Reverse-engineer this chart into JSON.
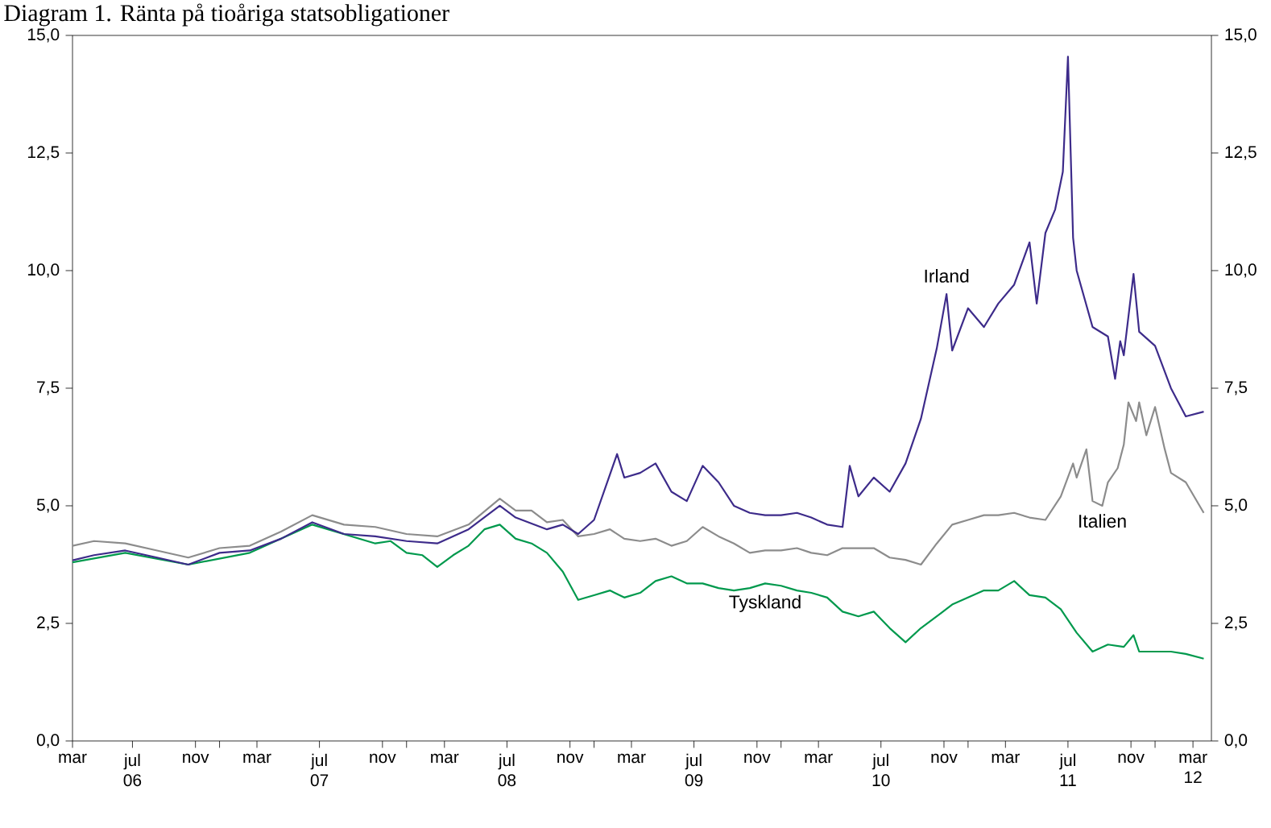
{
  "chart_data": {
    "type": "line",
    "title": "Diagram 1. Ränta på tioåriga statsobligationer",
    "xlim": [
      "2006-03-20",
      "2012-04-20"
    ],
    "xticks": [
      {
        "value": "2006-03-20",
        "label": "mar"
      },
      {
        "value": "2006-07-15",
        "label": "jul 06"
      },
      {
        "value": "2006-11-15",
        "label": "nov"
      },
      {
        "value": "2007-01-01",
        "label": null
      },
      {
        "value": "2007-03-15",
        "label": "mar"
      },
      {
        "value": "2007-07-15",
        "label": "jul 07"
      },
      {
        "value": "2007-11-15",
        "label": "nov"
      },
      {
        "value": "2008-01-01",
        "label": null
      },
      {
        "value": "2008-03-15",
        "label": "mar"
      },
      {
        "value": "2008-07-15",
        "label": "jul 08"
      },
      {
        "value": "2008-11-15",
        "label": "nov"
      },
      {
        "value": "2009-01-01",
        "label": null
      },
      {
        "value": "2009-03-15",
        "label": "mar"
      },
      {
        "value": "2009-07-15",
        "label": "jul 09"
      },
      {
        "value": "2009-11-15",
        "label": "nov"
      },
      {
        "value": "2010-01-01",
        "label": null
      },
      {
        "value": "2010-03-15",
        "label": "mar"
      },
      {
        "value": "2010-07-15",
        "label": "jul 10"
      },
      {
        "value": "2010-11-15",
        "label": "nov"
      },
      {
        "value": "2011-01-01",
        "label": null
      },
      {
        "value": "2011-03-15",
        "label": "mar"
      },
      {
        "value": "2011-07-15",
        "label": "jul 11"
      },
      {
        "value": "2011-11-15",
        "label": "nov"
      },
      {
        "value": "2012-01-01",
        "label": null
      },
      {
        "value": "2012-03-15",
        "label": "mar 12"
      }
    ],
    "ylim": [
      0,
      15
    ],
    "yticks": [
      {
        "value": 0,
        "label": "0,0"
      },
      {
        "value": 2.5,
        "label": "2,5"
      },
      {
        "value": 5,
        "label": "5,0"
      },
      {
        "value": 7.5,
        "label": "7,5"
      },
      {
        "value": 10,
        "label": "10,0"
      },
      {
        "value": 12.5,
        "label": "12,5"
      },
      {
        "value": 15,
        "label": "15,0"
      }
    ],
    "y2lim": [
      0,
      15
    ],
    "y2ticks": [
      {
        "value": 0,
        "label": "0,0"
      },
      {
        "value": 2.5,
        "label": "2,5"
      },
      {
        "value": 5,
        "label": "5,0"
      },
      {
        "value": 7.5,
        "label": "7,5"
      },
      {
        "value": 10,
        "label": "10,0"
      },
      {
        "value": 12.5,
        "label": "12,5"
      },
      {
        "value": 15,
        "label": "15,0"
      }
    ],
    "series": [
      {
        "color": "#8c8c8c",
        "x": [
          "2006-03-20",
          "2006-05",
          "2006-07",
          "2006-09",
          "2006-11",
          "2007-01",
          "2007-03",
          "2007-05",
          "2007-07",
          "2007-09",
          "2007-11",
          "2008-01",
          "2008-03",
          "2008-05",
          "2008-07",
          "2008-08",
          "2008-09",
          "2008-10",
          "2008-11",
          "2008-12",
          "2009-01",
          "2009-02",
          "2009-03",
          "2009-04",
          "2009-05",
          "2009-06",
          "2009-07",
          "2009-08",
          "2009-09",
          "2009-10",
          "2009-11",
          "2009-12",
          "2010-01",
          "2010-02",
          "2010-03",
          "2010-04",
          "2010-05",
          "2010-06",
          "2010-07",
          "2010-08",
          "2010-09",
          "2010-10",
          "2010-11",
          "2010-12",
          "2011-01",
          "2011-02",
          "2011-03",
          "2011-04",
          "2011-05",
          "2011-06",
          "2011-07",
          "2011-07-25",
          "2011-08",
          "2011-08-20",
          "2011-09",
          "2011-09-20",
          "2011-10",
          "2011-10-20",
          "2011-11",
          "2011-11-10",
          "2011-11-25",
          "2011-12",
          "2011-12-15",
          "2012-01",
          "2012-01-20",
          "2012-02",
          "2012-03",
          "2012-04-05"
        ],
        "values": [
          4.15,
          4.25,
          4.2,
          4.05,
          3.9,
          4.1,
          4.15,
          4.45,
          4.8,
          4.6,
          4.55,
          4.4,
          4.35,
          4.6,
          5.15,
          4.9,
          4.9,
          4.65,
          4.7,
          4.35,
          4.4,
          4.5,
          4.3,
          4.25,
          4.3,
          4.15,
          4.25,
          4.55,
          4.35,
          4.2,
          4.0,
          4.05,
          4.05,
          4.1,
          4.0,
          3.95,
          4.1,
          4.1,
          4.1,
          3.9,
          3.85,
          3.75,
          4.2,
          4.6,
          4.7,
          4.8,
          4.8,
          4.85,
          4.75,
          4.7,
          5.2,
          5.9,
          5.6,
          6.2,
          5.1,
          5.0,
          5.5,
          5.8,
          6.3,
          7.2,
          6.8,
          7.2,
          6.5,
          7.1,
          6.2,
          5.7,
          5.5,
          4.85
        ]
      },
      {
        "color": "#00994d",
        "x": [
          "2006-03-20",
          "2006-07",
          "2006-11",
          "2007-03",
          "2007-07",
          "2007-11",
          "2007-12",
          "2008-01",
          "2008-02",
          "2008-03",
          "2008-04",
          "2008-05",
          "2008-06",
          "2008-07",
          "2008-08",
          "2008-09",
          "2008-10",
          "2008-11",
          "2008-12",
          "2009-01",
          "2009-02",
          "2009-03",
          "2009-04",
          "2009-05",
          "2009-06",
          "2009-07",
          "2009-08",
          "2009-09",
          "2009-10",
          "2009-11",
          "2009-12",
          "2010-01",
          "2010-02",
          "2010-03",
          "2010-04",
          "2010-05",
          "2010-06",
          "2010-07",
          "2010-08",
          "2010-09",
          "2010-10",
          "2010-11",
          "2010-12",
          "2011-01",
          "2011-02",
          "2011-03",
          "2011-04",
          "2011-05",
          "2011-06",
          "2011-07",
          "2011-08",
          "2011-09",
          "2011-10",
          "2011-11",
          "2011-11-20",
          "2011-12",
          "2012-01",
          "2012-02",
          "2012-03",
          "2012-04-05"
        ],
        "values": [
          3.8,
          4.0,
          3.75,
          4.0,
          4.6,
          4.2,
          4.25,
          4.0,
          3.95,
          3.7,
          3.95,
          4.15,
          4.5,
          4.6,
          4.3,
          4.2,
          4.0,
          3.6,
          3.0,
          3.1,
          3.2,
          3.05,
          3.15,
          3.4,
          3.5,
          3.35,
          3.35,
          3.25,
          3.2,
          3.25,
          3.35,
          3.3,
          3.2,
          3.15,
          3.05,
          2.75,
          2.65,
          2.75,
          2.4,
          2.1,
          2.4,
          2.65,
          2.9,
          3.05,
          3.2,
          3.2,
          3.4,
          3.1,
          3.05,
          2.8,
          2.3,
          1.9,
          2.05,
          2.0,
          2.25,
          1.9,
          1.9,
          1.9,
          1.85,
          1.75
        ]
      },
      {
        "color": "#3d2b8a",
        "x": [
          "2006-03-20",
          "2006-05",
          "2006-07",
          "2006-09",
          "2006-11",
          "2007-01",
          "2007-03",
          "2007-05",
          "2007-07",
          "2007-09",
          "2007-11",
          "2008-01",
          "2008-03",
          "2008-05",
          "2008-07",
          "2008-08",
          "2008-10",
          "2008-11",
          "2008-12",
          "2009-01",
          "2009-02-15",
          "2009-03",
          "2009-04",
          "2009-05",
          "2009-06",
          "2009-07",
          "2009-08",
          "2009-09",
          "2009-10",
          "2009-11",
          "2009-12",
          "2010-01",
          "2010-02",
          "2010-03",
          "2010-04",
          "2010-05",
          "2010-05-15",
          "2010-06",
          "2010-07",
          "2010-08",
          "2010-09",
          "2010-10",
          "2010-11",
          "2010-11-20",
          "2010-12",
          "2011-01",
          "2011-02",
          "2011-03",
          "2011-04",
          "2011-05",
          "2011-05-15",
          "2011-06",
          "2011-06-20",
          "2011-07-05",
          "2011-07-15",
          "2011-07-25",
          "2011-08",
          "2011-09",
          "2011-10",
          "2011-10-15",
          "2011-10-25",
          "2011-11",
          "2011-11-20",
          "2011-12",
          "2012-01",
          "2012-02",
          "2012-03",
          "2012-04-05"
        ],
        "values": [
          3.84,
          3.95,
          4.05,
          3.9,
          3.75,
          4.0,
          4.05,
          4.3,
          4.65,
          4.4,
          4.35,
          4.25,
          4.2,
          4.5,
          5.0,
          4.75,
          4.5,
          4.6,
          4.4,
          4.7,
          6.1,
          5.6,
          5.7,
          5.9,
          5.3,
          5.1,
          5.85,
          5.5,
          5.0,
          4.85,
          4.8,
          4.8,
          4.85,
          4.75,
          4.6,
          4.55,
          5.85,
          5.2,
          5.6,
          5.3,
          5.9,
          6.85,
          8.35,
          9.5,
          8.3,
          9.2,
          8.8,
          9.3,
          9.7,
          10.6,
          9.3,
          10.8,
          11.3,
          12.1,
          14.55,
          10.7,
          10.0,
          8.8,
          8.6,
          7.7,
          8.5,
          8.2,
          9.93,
          8.7,
          8.4,
          7.5,
          6.9,
          7.0
        ]
      }
    ],
    "annotations": [
      {
        "text": "Irland",
        "x": "2010-11-20",
        "y": 9.5
      },
      {
        "text": "Italien",
        "x": "2011-09-20",
        "y": 5.0
      },
      {
        "text": "Tyskland",
        "x": "2009-12",
        "y": 3.35
      }
    ]
  }
}
